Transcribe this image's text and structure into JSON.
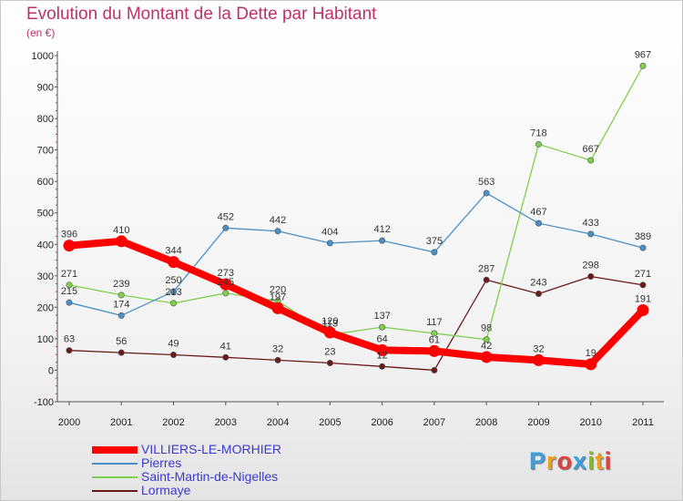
{
  "header": {
    "title": "Evolution du Montant de la Dette par Habitant",
    "unit": "(en €)"
  },
  "logo": {
    "text": "Proxiti",
    "colors": [
      "#3aa0e0",
      "#f0a020",
      "#e04040",
      "#3aa0e0",
      "#80c020",
      "#f0a020",
      "#e04040"
    ]
  },
  "chart_data": {
    "type": "line",
    "title": "Evolution du Montant de la Dette par Habitant",
    "subtitle": "(en €)",
    "xlabel": "",
    "ylabel": "",
    "x": [
      "2000",
      "2001",
      "2002",
      "2003",
      "2004",
      "2005",
      "2006",
      "2007",
      "2008",
      "2009",
      "2010",
      "2011"
    ],
    "ylim": [
      -100,
      1000
    ],
    "yticks": [
      -100,
      0,
      100,
      200,
      300,
      400,
      500,
      600,
      700,
      800,
      900,
      1000
    ],
    "yticks_labels": [
      "-100",
      "0",
      "100",
      "200",
      "300",
      "400",
      "500",
      "600",
      "700",
      "800",
      "900",
      "1000"
    ],
    "grid": false,
    "legend_position": "bottom-left",
    "series": [
      {
        "name": "VILLIERS-LE-MORHIER",
        "color": "#ff0000",
        "values": [
          396,
          410,
          344,
          273,
          197,
          120,
          64,
          61,
          42,
          32,
          19,
          191
        ],
        "labels": [
          "396",
          "410",
          "344",
          "273",
          "197",
          "120",
          "64",
          "61",
          "42",
          "32",
          "19",
          "191"
        ]
      },
      {
        "name": "Pierres",
        "color": "#4a90c8",
        "values": [
          215,
          174,
          250,
          452,
          442,
          404,
          412,
          375,
          563,
          467,
          433,
          389
        ],
        "labels": [
          "215",
          "174",
          "250",
          "452",
          "442",
          "404",
          "412",
          "375",
          "563",
          "467",
          "433",
          "389"
        ]
      },
      {
        "name": "Saint-Martin-de-Nigelles",
        "color": "#7fd04a",
        "values": [
          271,
          239,
          213,
          245,
          220,
          113,
          137,
          117,
          98,
          718,
          667,
          967
        ],
        "labels": [
          "271",
          "239",
          "213",
          "245",
          "220",
          "113",
          "137",
          "117",
          "98",
          "718",
          "667",
          "967"
        ]
      },
      {
        "name": "Lormaye",
        "color": "#6a1a1a",
        "values": [
          63,
          56,
          49,
          41,
          32,
          23,
          12,
          0,
          287,
          243,
          298,
          271
        ],
        "labels": [
          "63",
          "56",
          "49",
          "41",
          "32",
          "23",
          "12",
          "",
          "287",
          "243",
          "298",
          "271"
        ]
      }
    ]
  }
}
